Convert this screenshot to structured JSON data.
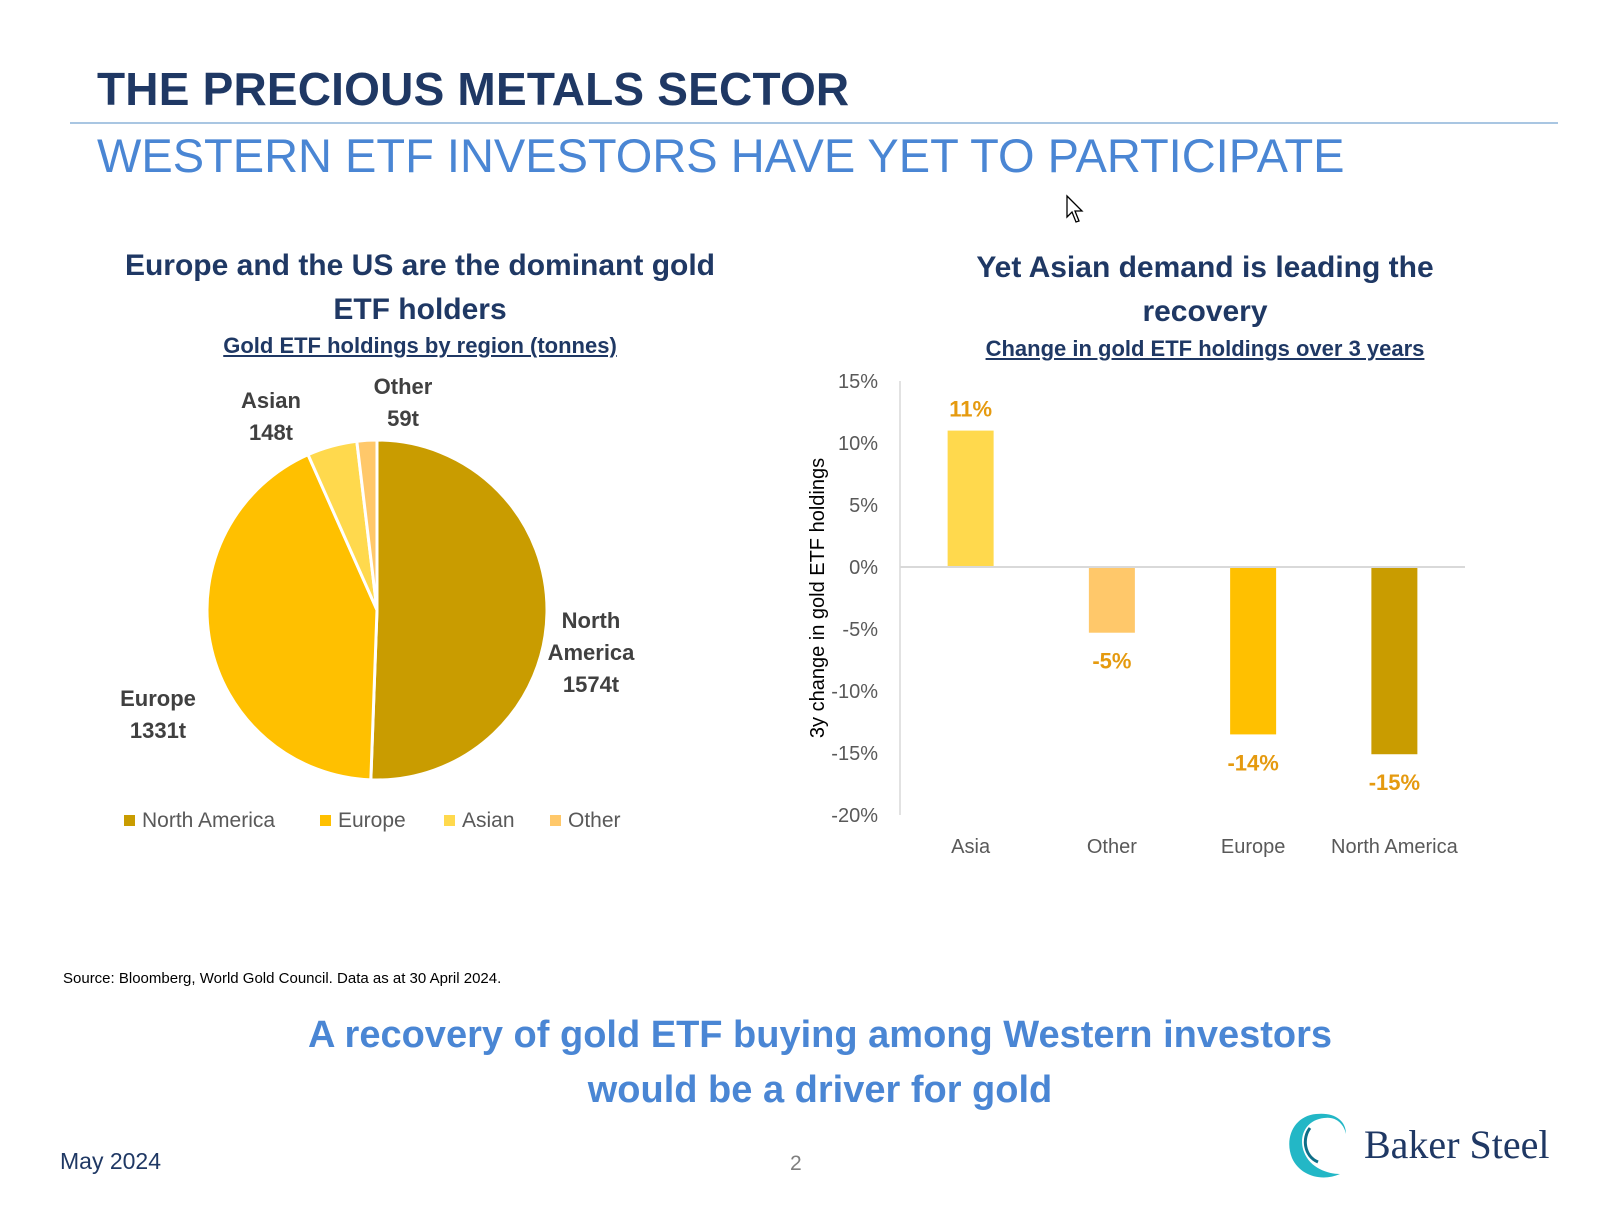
{
  "slide": {
    "title": "THE PRECIOUS METALS SECTOR",
    "subtitle": "WESTERN ETF INVESTORS HAVE YET TO PARTICIPATE",
    "source": "Source: Bloomberg, World Gold Council. Data as at 30 April 2024.",
    "tagline_line1": "A recovery of gold ETF buying among Western investors",
    "tagline_line2": "would be a driver for gold",
    "date": "May 2024",
    "page_number": "2",
    "brand": "Baker Steel",
    "colors": {
      "title": "#1f3864",
      "subtitle": "#4a86d4",
      "north_america": "#c99c00",
      "europe": "#ffc000",
      "asian": "#ffd94d",
      "other": "#ffc86a",
      "data_label": "#e59a0f"
    }
  },
  "pie_panel": {
    "heading_line1": "Europe and the US are the dominant gold",
    "heading_line2": "ETF holders",
    "subheading": "Gold ETF holdings by region (tonnes)"
  },
  "bar_panel": {
    "heading_line1": "Yet Asian demand is leading the",
    "heading_line2": "recovery",
    "subheading": "Change in gold ETF holdings over 3 years"
  },
  "chart_data": [
    {
      "type": "pie",
      "title": "Gold ETF holdings by region (tonnes)",
      "categories": [
        "North America",
        "Europe",
        "Asian",
        "Other"
      ],
      "values": [
        1574,
        1331,
        148,
        59
      ],
      "slice_labels": [
        {
          "name_lines": [
            "North",
            "America"
          ],
          "value": "1574t"
        },
        {
          "name_lines": [
            "Europe"
          ],
          "value": "1331t"
        },
        {
          "name_lines": [
            "Asian"
          ],
          "value": "148t"
        },
        {
          "name_lines": [
            "Other"
          ],
          "value": "59t"
        }
      ],
      "legend": [
        "North America",
        "Europe",
        "Asian",
        "Other"
      ],
      "legend_placement": "bottom"
    },
    {
      "type": "bar",
      "title": "Change in gold ETF holdings over 3 years",
      "categories": [
        "Asia",
        "Other",
        "Europe",
        "North America"
      ],
      "values": [
        11,
        -5.3,
        -13.5,
        -15.1
      ],
      "data_labels": [
        "11%",
        "-5%",
        "-14%",
        "-15%"
      ],
      "ylabel": "3y change in gold ETF holdings",
      "ylim": [
        -20,
        15
      ],
      "yticks": [
        15,
        10,
        5,
        0,
        -5,
        -10,
        -15,
        -20
      ],
      "ytick_labels": [
        "15%",
        "10%",
        "5%",
        "0%",
        "-5%",
        "-10%",
        "-15%",
        "-20%"
      ],
      "grid": false
    }
  ]
}
